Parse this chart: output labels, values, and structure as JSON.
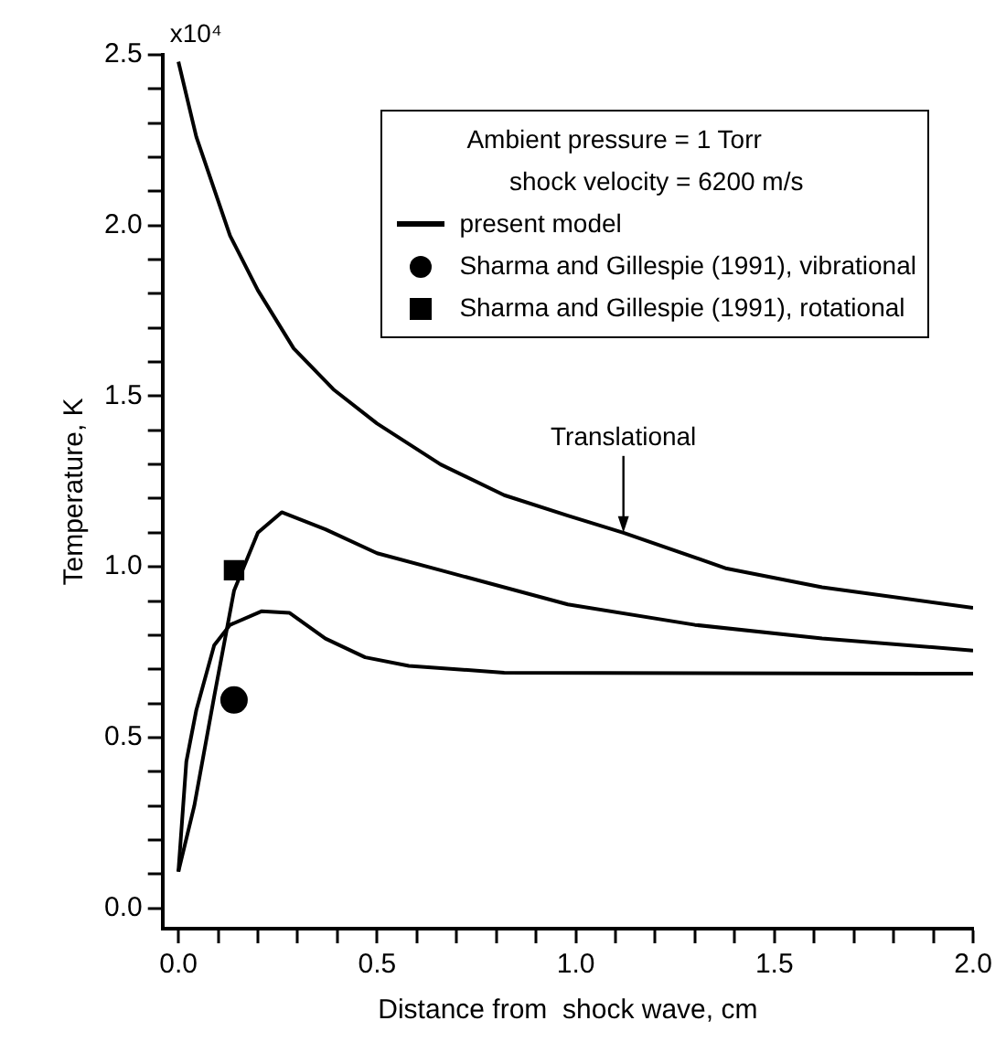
{
  "chart_data": {
    "type": "line",
    "xlabel": "Distance from  shock wave, cm",
    "ylabel": "Temperature, K",
    "legend_title": "Ambient pressure = 1 Torr\n      shock velocity = 6200 m/s",
    "xlim": [
      -0.04,
      2.0
    ],
    "ylim": [
      -0.06,
      2.5
    ],
    "xticks": [
      {
        "value": 0,
        "label": "0.0"
      },
      {
        "value": 0.1,
        "label": null
      },
      {
        "value": 0.2,
        "label": null
      },
      {
        "value": 0.3,
        "label": null
      },
      {
        "value": 0.4,
        "label": null
      },
      {
        "value": 0.5,
        "label": "0.5"
      },
      {
        "value": 0.6,
        "label": null
      },
      {
        "value": 0.7,
        "label": null
      },
      {
        "value": 0.8,
        "label": null
      },
      {
        "value": 0.9,
        "label": null
      },
      {
        "value": 1.0,
        "label": "1.0"
      },
      {
        "value": 1.1,
        "label": null
      },
      {
        "value": 1.2,
        "label": null
      },
      {
        "value": 1.3,
        "label": null
      },
      {
        "value": 1.4,
        "label": null
      },
      {
        "value": 1.5,
        "label": "1.5"
      },
      {
        "value": 1.6,
        "label": null
      },
      {
        "value": 1.7,
        "label": null
      },
      {
        "value": 1.8,
        "label": null
      },
      {
        "value": 1.9,
        "label": null
      },
      {
        "value": 2.0,
        "label": "2.0"
      }
    ],
    "yticks": [
      {
        "value": 0,
        "label": "0.0"
      },
      {
        "value": 0.1,
        "label": null
      },
      {
        "value": 0.2,
        "label": null
      },
      {
        "value": 0.3,
        "label": null
      },
      {
        "value": 0.4,
        "label": null
      },
      {
        "value": 0.5,
        "label": "0.5"
      },
      {
        "value": 0.6,
        "label": null
      },
      {
        "value": 0.7,
        "label": null
      },
      {
        "value": 0.8,
        "label": null
      },
      {
        "value": 0.9,
        "label": null
      },
      {
        "value": 1.0,
        "label": "1.0"
      },
      {
        "value": 1.1,
        "label": null
      },
      {
        "value": 1.2,
        "label": null
      },
      {
        "value": 1.3,
        "label": null
      },
      {
        "value": 1.4,
        "label": null
      },
      {
        "value": 1.5,
        "label": "1.5"
      },
      {
        "value": 1.6,
        "label": null
      },
      {
        "value": 1.7,
        "label": null
      },
      {
        "value": 1.8,
        "label": null
      },
      {
        "value": 1.9,
        "label": null
      },
      {
        "value": 2.0,
        "label": "2.0"
      },
      {
        "value": 2.1,
        "label": null
      },
      {
        "value": 2.2,
        "label": null
      },
      {
        "value": 2.3,
        "label": null
      },
      {
        "value": 2.4,
        "label": null
      },
      {
        "value": 2.5,
        "label": "2.5"
      }
    ],
    "grid": false,
    "legend": "top right",
    "line_style": "solid",
    "annotations": [
      {
        "text": "Translational",
        "x": 1.12,
        "y": 1.1
      },
      "x10⁴"
    ],
    "series": [
      {
        "name": "present model",
        "marker": "none",
        "color": "#000000",
        "x": [
          0,
          0.045,
          0.13,
          0.2,
          0.29,
          0.39,
          0.5,
          0.66,
          0.82,
          0.98,
          1.12,
          1.38,
          1.62,
          2.0
        ],
        "values": [
          2.48,
          2.26,
          1.97,
          1.81,
          1.64,
          1.52,
          1.42,
          1.3,
          1.21,
          1.15,
          1.1,
          0.995,
          0.94,
          0.88
        ]
      },
      {
        "marker": "none",
        "color": "#000000",
        "x": [
          0,
          0.04,
          0.09,
          0.14,
          0.2,
          0.26,
          0.37,
          0.5,
          0.66,
          0.98,
          1.3,
          1.62,
          2.0
        ],
        "values": [
          0.107,
          0.3,
          0.62,
          0.93,
          1.1,
          1.16,
          1.11,
          1.04,
          0.99,
          0.89,
          0.83,
          0.79,
          0.755
        ]
      },
      {
        "marker": "none",
        "color": "#000000",
        "x": [
          0,
          0.02,
          0.045,
          0.09,
          0.13,
          0.21,
          0.28,
          0.37,
          0.47,
          0.58,
          0.82,
          2.0
        ],
        "values": [
          0.107,
          0.43,
          0.58,
          0.77,
          0.83,
          0.87,
          0.865,
          0.79,
          0.735,
          0.71,
          0.69,
          0.687
        ]
      },
      {
        "name": "Sharma and Gillespie (1991), vibrational",
        "type": "scatter",
        "marker": "circle",
        "color": "#000000",
        "x": [
          0.14
        ],
        "values": [
          0.61
        ]
      },
      {
        "name": "Sharma and Gillespie (1991), rotational",
        "type": "scatter",
        "marker": "square",
        "color": "#000000",
        "x": [
          0.14
        ],
        "values": [
          0.99
        ]
      }
    ]
  }
}
